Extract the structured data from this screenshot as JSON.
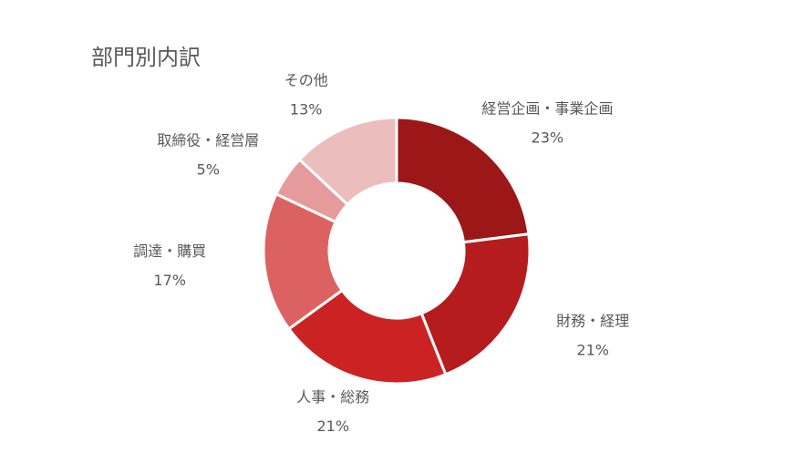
{
  "chart_data": {
    "type": "donut",
    "title": "部門別内訳",
    "categories": [
      "経営企画・事業企画",
      "財務・経理",
      "人事・総務",
      "調達・購買",
      "取締役・経営層",
      "その他"
    ],
    "values": [
      23,
      21,
      21,
      17,
      5,
      13
    ],
    "value_labels": [
      "23%",
      "21%",
      "21%",
      "17%",
      "5%",
      "13%"
    ],
    "colors": [
      "#9c1717",
      "#b51c1e",
      "#cb2324",
      "#dc6262",
      "#e59b9b",
      "#ecbdbd"
    ]
  }
}
